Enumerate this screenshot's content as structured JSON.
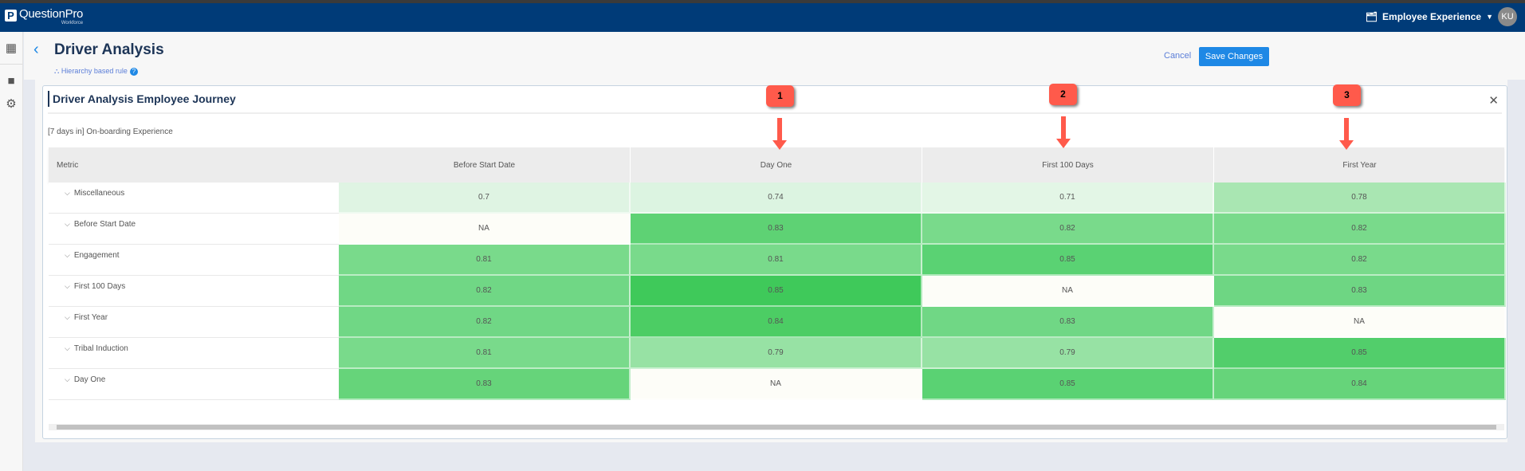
{
  "app": {
    "logo_text": "QuestionPro",
    "logo_sub": "Workforce",
    "product": "Employee Experience",
    "avatar": "KU"
  },
  "page": {
    "title": "Driver Analysis",
    "rule_link": "Hierarchy based rule",
    "cancel": "Cancel",
    "save": "Save Changes"
  },
  "card": {
    "title": "Driver Analysis Employee Journey",
    "subtitle": "[7 days in] On-boarding Experience"
  },
  "table": {
    "headers": [
      "Metric",
      "Before Start Date",
      "Day One",
      "First 100 Days",
      "First Year"
    ],
    "rows": [
      {
        "metric": "Miscellaneous",
        "values": [
          "0.7",
          "0.74",
          "0.71",
          "0.78"
        ],
        "colors": [
          "#dff4e3",
          "#dcf4e1",
          "#e3f6e6",
          "#a9e6b2"
        ]
      },
      {
        "metric": "Before Start Date",
        "values": [
          "NA",
          "0.83",
          "0.82",
          "0.82"
        ],
        "colors": [
          "#fdfdf8",
          "#5ed274",
          "#79da8b",
          "#79da8b"
        ]
      },
      {
        "metric": "Engagement",
        "values": [
          "0.81",
          "0.81",
          "0.85",
          "0.82"
        ],
        "colors": [
          "#79da8b",
          "#79da8b",
          "#5ad273",
          "#79da8b"
        ]
      },
      {
        "metric": "First 100 Days",
        "values": [
          "0.82",
          "0.85",
          "NA",
          "0.83"
        ],
        "colors": [
          "#70d785",
          "#3fc95a",
          "#fdfdf8",
          "#6ed683"
        ]
      },
      {
        "metric": "First Year",
        "values": [
          "0.82",
          "0.84",
          "0.83",
          "NA"
        ],
        "colors": [
          "#70d785",
          "#4ccd64",
          "#70d785",
          "#fdfdf8"
        ]
      },
      {
        "metric": "Tribal Induction",
        "values": [
          "0.81",
          "0.79",
          "0.79",
          "0.85"
        ],
        "colors": [
          "#79da8b",
          "#97e2a4",
          "#97e2a4",
          "#52ce6b"
        ]
      },
      {
        "metric": "Day One",
        "values": [
          "0.83",
          "NA",
          "0.85",
          "0.84"
        ],
        "colors": [
          "#66d47a",
          "#fdfdf8",
          "#5ad273",
          "#66d47a"
        ]
      }
    ]
  },
  "annotations": [
    "1",
    "2",
    "3"
  ],
  "colors": {
    "header": "#003b78",
    "accent": "#1e88e5",
    "annotation": "#ff5a4b"
  }
}
